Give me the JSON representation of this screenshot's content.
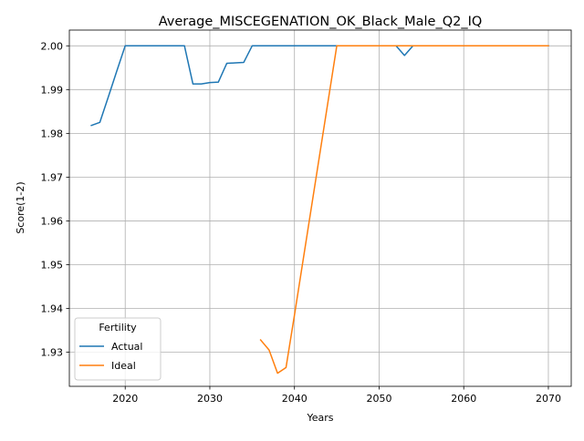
{
  "chart_data": {
    "type": "line",
    "title": "Average_MISCEGENATION_OK_Black_Male_Q2_IQ",
    "xlabel": "Years",
    "ylabel": "Score(1-2)",
    "xlim": [
      2013.4,
      2072.7
    ],
    "ylim": [
      1.9222,
      2.0036
    ],
    "xticks": [
      2020,
      2030,
      2040,
      2050,
      2060,
      2070
    ],
    "yticks": [
      1.93,
      1.94,
      1.95,
      1.96,
      1.97,
      1.98,
      1.99,
      2.0
    ],
    "ytick_labels": [
      "1.93",
      "1.94",
      "1.95",
      "1.96",
      "1.97",
      "1.98",
      "1.99",
      "2.00"
    ],
    "grid": true,
    "legend": {
      "title": "Fertility",
      "placement": "lower-left"
    },
    "series": [
      {
        "name": "Actual",
        "color": "#1f77b4",
        "points": [
          [
            2016,
            1.9818
          ],
          [
            2017,
            1.9825
          ],
          [
            2018,
            1.9883
          ],
          [
            2019,
            1.9942
          ],
          [
            2020,
            2.0
          ],
          [
            2021,
            2.0
          ],
          [
            2022,
            2.0
          ],
          [
            2023,
            2.0
          ],
          [
            2024,
            2.0
          ],
          [
            2025,
            2.0
          ],
          [
            2026,
            2.0
          ],
          [
            2027,
            2.0
          ],
          [
            2028,
            1.9913
          ],
          [
            2029,
            1.9913
          ],
          [
            2030,
            1.9916
          ],
          [
            2031,
            1.9917
          ],
          [
            2032,
            1.996
          ],
          [
            2033,
            1.9961
          ],
          [
            2034,
            1.9962
          ],
          [
            2035,
            2.0
          ],
          [
            2036,
            2.0
          ],
          [
            2037,
            2.0
          ],
          [
            2038,
            2.0
          ],
          [
            2039,
            2.0
          ],
          [
            2040,
            2.0
          ],
          [
            2041,
            2.0
          ],
          [
            2042,
            2.0
          ],
          [
            2043,
            2.0
          ],
          [
            2044,
            2.0
          ],
          [
            2045,
            2.0
          ],
          [
            2046,
            2.0
          ],
          [
            2047,
            2.0
          ],
          [
            2048,
            2.0
          ],
          [
            2049,
            2.0
          ],
          [
            2050,
            2.0
          ],
          [
            2051,
            2.0
          ],
          [
            2052,
            2.0
          ],
          [
            2053,
            1.9978
          ],
          [
            2054,
            2.0
          ],
          [
            2055,
            2.0
          ],
          [
            2056,
            2.0
          ],
          [
            2057,
            2.0
          ],
          [
            2058,
            2.0
          ],
          [
            2059,
            2.0
          ],
          [
            2060,
            2.0
          ],
          [
            2061,
            2.0
          ],
          [
            2062,
            2.0
          ],
          [
            2063,
            2.0
          ],
          [
            2064,
            2.0
          ],
          [
            2065,
            2.0
          ],
          [
            2066,
            2.0
          ],
          [
            2067,
            2.0
          ],
          [
            2068,
            2.0
          ],
          [
            2069,
            2.0
          ],
          [
            2070,
            2.0
          ]
        ]
      },
      {
        "name": "Ideal",
        "color": "#ff7f0e",
        "points": [
          [
            2036,
            1.9328
          ],
          [
            2037,
            1.9305
          ],
          [
            2038,
            1.9252
          ],
          [
            2039,
            1.9265
          ],
          [
            2040,
            1.9385
          ],
          [
            2045,
            2.0
          ],
          [
            2046,
            2.0
          ],
          [
            2047,
            2.0
          ],
          [
            2048,
            2.0
          ],
          [
            2049,
            2.0
          ],
          [
            2050,
            2.0
          ],
          [
            2051,
            2.0
          ],
          [
            2052,
            2.0
          ],
          [
            2053,
            2.0
          ],
          [
            2054,
            2.0
          ],
          [
            2055,
            2.0
          ],
          [
            2056,
            2.0
          ],
          [
            2057,
            2.0
          ],
          [
            2058,
            2.0
          ],
          [
            2059,
            2.0
          ],
          [
            2060,
            2.0
          ],
          [
            2061,
            2.0
          ],
          [
            2062,
            2.0
          ],
          [
            2063,
            2.0
          ],
          [
            2064,
            2.0
          ],
          [
            2065,
            2.0
          ],
          [
            2066,
            2.0
          ],
          [
            2067,
            2.0
          ],
          [
            2068,
            2.0
          ],
          [
            2069,
            2.0
          ],
          [
            2070,
            2.0
          ]
        ]
      }
    ]
  }
}
